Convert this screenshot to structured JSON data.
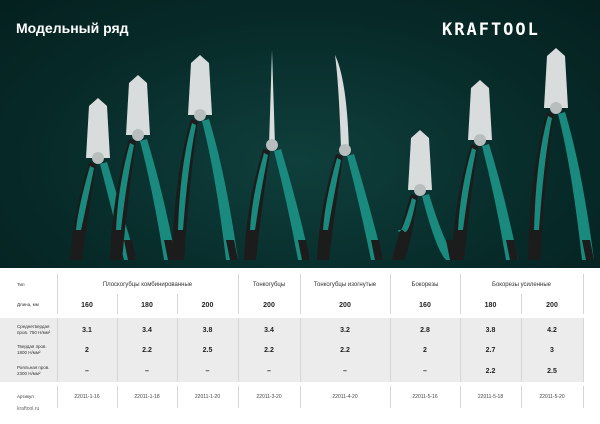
{
  "header": {
    "title": "Модельный ряд",
    "logo": "KRAFTOOL"
  },
  "colors": {
    "background": "#072b29",
    "handle_green": "#1a8a7e",
    "handle_black": "#1c1c1c",
    "steel": "#d8dcdc"
  },
  "table": {
    "row_labels": {
      "type": "Тип",
      "length": "Длина, мм",
      "medium": "Среднетвердая пров. 750 Н/мм²",
      "hard": "Твердая пров. 1800 Н/мм²",
      "piano": "Рояльная пров. 2300 Н/мм²",
      "article": "Артикул"
    },
    "groups": [
      "Плоскогубцы комбинированные",
      "Тонкогубцы",
      "Тонкогубцы изогнутые",
      "Бокорезы",
      "Бокорезы усиленные"
    ],
    "columns": [
      {
        "length": "160",
        "medium": "3.1",
        "hard": "2",
        "piano": "–",
        "article": "22011-1-16"
      },
      {
        "length": "180",
        "medium": "3.4",
        "hard": "2.2",
        "piano": "–",
        "article": "22011-1-18"
      },
      {
        "length": "200",
        "medium": "3.8",
        "hard": "2.5",
        "piano": "–",
        "article": "22011-1-20"
      },
      {
        "length": "200",
        "medium": "3.4",
        "hard": "2.2",
        "piano": "–",
        "article": "22011-3-20"
      },
      {
        "length": "200",
        "medium": "3.2",
        "hard": "2.2",
        "piano": "–",
        "article": "22011-4-20"
      },
      {
        "length": "160",
        "medium": "2.8",
        "hard": "2",
        "piano": "–",
        "article": "22011-5-16"
      },
      {
        "length": "180",
        "medium": "3.8",
        "hard": "2.7",
        "piano": "2.2",
        "article": "22011-5-18"
      },
      {
        "length": "200",
        "medium": "4.2",
        "hard": "3",
        "piano": "2.5",
        "article": "22011-5-20"
      }
    ]
  },
  "footer": {
    "site": "kraftool.ru"
  }
}
